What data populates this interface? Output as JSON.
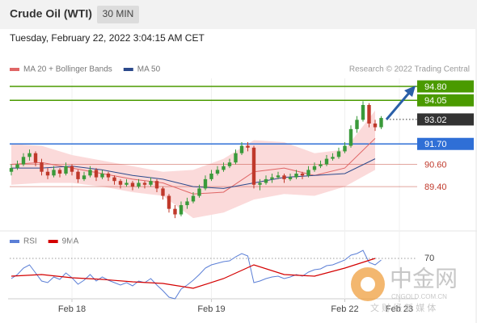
{
  "header": {
    "title": "Crude Oil (WTI)",
    "interval": "30 MIN",
    "timestamp": "Tuesday, February 22, 2022 3:04:15 AM CET"
  },
  "chart_data": {
    "type": "candlestick",
    "credit": "Research © 2022 Trading Central",
    "up_color": "#3a9a3a",
    "down_color": "#c0392b",
    "ylim": [
      87.27,
      95.28
    ],
    "candles": [
      [
        90.2,
        90.6,
        90.0,
        90.4
      ],
      [
        90.4,
        90.8,
        90.3,
        90.6
      ],
      [
        90.6,
        91.2,
        90.5,
        91.0
      ],
      [
        91.0,
        91.4,
        90.8,
        91.2
      ],
      [
        91.2,
        91.3,
        90.5,
        90.7
      ],
      [
        90.7,
        90.9,
        90.0,
        90.2
      ],
      [
        90.2,
        90.4,
        89.8,
        90.0
      ],
      [
        90.0,
        90.5,
        89.9,
        90.3
      ],
      [
        90.3,
        90.4,
        89.9,
        90.1
      ],
      [
        90.1,
        90.7,
        90.0,
        90.5
      ],
      [
        90.5,
        90.6,
        90.0,
        90.2
      ],
      [
        90.2,
        90.3,
        89.6,
        89.8
      ],
      [
        89.8,
        90.2,
        89.7,
        90.0
      ],
      [
        90.0,
        90.5,
        89.9,
        90.3
      ],
      [
        90.3,
        90.4,
        89.7,
        89.9
      ],
      [
        89.9,
        90.3,
        89.8,
        90.1
      ],
      [
        90.1,
        90.2,
        89.7,
        89.9
      ],
      [
        89.9,
        90.0,
        89.5,
        89.7
      ],
      [
        89.7,
        89.8,
        89.3,
        89.5
      ],
      [
        89.5,
        89.8,
        89.4,
        89.6
      ],
      [
        89.6,
        89.7,
        89.2,
        89.4
      ],
      [
        89.4,
        89.8,
        89.3,
        89.6
      ],
      [
        89.6,
        89.7,
        89.3,
        89.5
      ],
      [
        89.5,
        89.9,
        89.4,
        89.7
      ],
      [
        89.7,
        89.8,
        89.1,
        89.3
      ],
      [
        89.3,
        89.4,
        88.7,
        88.9
      ],
      [
        88.9,
        89.0,
        88.0,
        88.2
      ],
      [
        88.2,
        88.4,
        87.7,
        87.9
      ],
      [
        87.9,
        88.6,
        87.8,
        88.4
      ],
      [
        88.4,
        88.8,
        88.2,
        88.6
      ],
      [
        88.6,
        89.1,
        88.5,
        88.9
      ],
      [
        88.9,
        89.5,
        88.8,
        89.3
      ],
      [
        89.3,
        90.0,
        89.2,
        89.8
      ],
      [
        89.8,
        90.3,
        89.7,
        90.1
      ],
      [
        90.1,
        90.5,
        90.0,
        90.3
      ],
      [
        90.3,
        90.7,
        90.2,
        90.5
      ],
      [
        90.5,
        90.9,
        90.4,
        90.7
      ],
      [
        90.7,
        91.4,
        90.6,
        91.2
      ],
      [
        91.2,
        91.8,
        91.1,
        91.6
      ],
      [
        91.6,
        91.8,
        91.3,
        91.5
      ],
      [
        91.5,
        91.6,
        89.3,
        89.5
      ],
      [
        89.5,
        89.8,
        89.2,
        89.6
      ],
      [
        89.6,
        90.0,
        89.5,
        89.8
      ],
      [
        89.8,
        90.1,
        89.6,
        89.9
      ],
      [
        89.9,
        90.2,
        89.8,
        90.0
      ],
      [
        90.0,
        90.1,
        89.6,
        89.8
      ],
      [
        89.8,
        90.1,
        89.7,
        89.9
      ],
      [
        89.9,
        90.3,
        89.8,
        90.1
      ],
      [
        90.1,
        90.2,
        89.8,
        90.0
      ],
      [
        90.0,
        90.5,
        89.9,
        90.3
      ],
      [
        90.3,
        90.7,
        90.2,
        90.5
      ],
      [
        90.5,
        90.8,
        90.4,
        90.6
      ],
      [
        90.6,
        91.1,
        90.5,
        90.9
      ],
      [
        90.9,
        91.2,
        90.8,
        91.0
      ],
      [
        91.0,
        91.5,
        90.9,
        91.3
      ],
      [
        91.3,
        91.8,
        91.2,
        91.6
      ],
      [
        91.6,
        92.7,
        91.5,
        92.5
      ],
      [
        92.5,
        93.2,
        92.3,
        93.0
      ],
      [
        93.0,
        94.0,
        92.9,
        93.8
      ],
      [
        93.8,
        93.9,
        92.6,
        92.8
      ],
      [
        92.8,
        93.0,
        92.4,
        92.6
      ],
      [
        92.6,
        93.2,
        92.5,
        93.1
      ]
    ],
    "ma_index": [
      0,
      5,
      10,
      15,
      20,
      25,
      30,
      35,
      40,
      45,
      50,
      55,
      60
    ],
    "overlays": [
      {
        "name": "MA 20 + Bollinger Bands",
        "color": "#e06666",
        "band_color": "#fbdada",
        "values": [
          90.6,
          90.7,
          90.4,
          90.1,
          89.8,
          89.6,
          89.0,
          89.1,
          90.2,
          90.4,
          90.0,
          90.4,
          92.0
        ],
        "upper": [
          91.7,
          91.6,
          91.1,
          90.8,
          90.5,
          90.2,
          90.3,
          90.9,
          91.9,
          91.8,
          91.2,
          91.4,
          93.5
        ],
        "lower": [
          89.5,
          89.6,
          89.6,
          89.4,
          89.1,
          88.9,
          87.7,
          88.0,
          88.7,
          89.0,
          88.9,
          89.4,
          90.3
        ]
      },
      {
        "name": "MA 50",
        "color": "#2c4a8c",
        "values": [
          90.4,
          90.4,
          90.5,
          90.3,
          90.0,
          89.8,
          89.4,
          89.3,
          89.6,
          89.9,
          90.0,
          90.1,
          90.9
        ]
      }
    ],
    "levels": [
      {
        "value": 94.8,
        "label": "94.80",
        "color": "#4a9a00",
        "line": "solid",
        "box": true
      },
      {
        "value": 94.05,
        "label": "94.05",
        "color": "#4a9a00",
        "line": "solid",
        "box": true
      },
      {
        "value": 93.02,
        "label": "93.02",
        "color": "#333333",
        "line": "dotted",
        "box": true
      },
      {
        "value": 91.7,
        "label": "91.70",
        "color": "#2f6fd6",
        "line": "solid",
        "box": true
      },
      {
        "value": 90.6,
        "label": "90.60",
        "color": "#c0392b",
        "line": "solid",
        "box": false
      },
      {
        "value": 89.4,
        "label": "89.40",
        "color": "#c0392b",
        "line": "solid",
        "box": false
      }
    ],
    "x_labels": [
      {
        "index": 10,
        "label": "Feb 18"
      },
      {
        "index": 33,
        "label": "Feb 19"
      },
      {
        "index": 55,
        "label": "Feb 22"
      },
      {
        "index": 64,
        "label": "Feb 23"
      }
    ],
    "rsi": {
      "name": "RSI",
      "color": "#5b7fd6",
      "values": [
        45,
        50,
        58,
        62,
        52,
        42,
        40,
        47,
        44,
        52,
        46,
        38,
        43,
        50,
        42,
        47,
        43,
        40,
        37,
        40,
        36,
        42,
        40,
        45,
        37,
        30,
        22,
        20,
        32,
        37,
        43,
        50,
        58,
        62,
        64,
        66,
        67,
        72,
        76,
        73,
        40,
        42,
        45,
        47,
        48,
        45,
        47,
        50,
        48,
        53,
        56,
        57,
        61,
        62,
        65,
        68,
        74,
        76,
        80,
        65,
        62,
        68
      ]
    },
    "rsi_ma": {
      "name": "9MA",
      "color": "#d40000",
      "values": [
        48,
        50,
        46,
        44,
        41,
        39,
        33,
        45,
        62,
        50,
        48,
        58,
        70
      ]
    },
    "rsi_ylim": [
      20,
      85
    ],
    "rsi_ticks": [
      70
    ]
  },
  "watermark": {
    "brand": "中金网",
    "site": "CNGOLD.COM.CN",
    "tagline": "文 财 经 新 媒 体"
  }
}
